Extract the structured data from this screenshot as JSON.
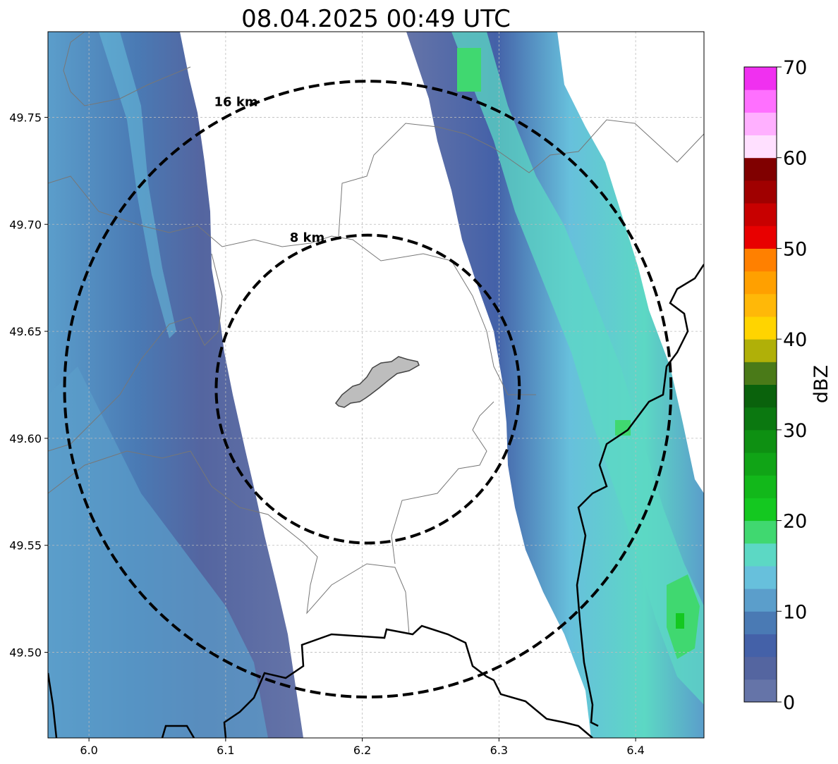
{
  "title": "08.04.2025 00:49 UTC",
  "map": {
    "lon_range": [
      5.97,
      6.45
    ],
    "lat_range": [
      49.46,
      49.79
    ],
    "x_ticks": [
      {
        "value": 6.0,
        "label": "6.0"
      },
      {
        "value": 6.1,
        "label": "6.1"
      },
      {
        "value": 6.2,
        "label": "6.2"
      },
      {
        "value": 6.3,
        "label": "6.3"
      },
      {
        "value": 6.4,
        "label": "6.4"
      }
    ],
    "y_ticks": [
      {
        "value": 49.5,
        "label": "49.50"
      },
      {
        "value": 49.55,
        "label": "49.55"
      },
      {
        "value": 49.6,
        "label": "49.60"
      },
      {
        "value": 49.65,
        "label": "49.65"
      },
      {
        "value": 49.7,
        "label": "49.70"
      },
      {
        "value": 49.75,
        "label": "49.75"
      }
    ],
    "grid": true,
    "center": {
      "lon": 6.204,
      "lat": 49.623
    },
    "range_rings": [
      {
        "radius_km": 8,
        "label": "8 km"
      },
      {
        "radius_km": 16,
        "label": "16 km"
      }
    ]
  },
  "colorbar": {
    "label": "dBZ",
    "min": 0,
    "max": 70,
    "ticks": [
      {
        "value": 0,
        "label": "0"
      },
      {
        "value": 10,
        "label": "10"
      },
      {
        "value": 20,
        "label": "20"
      },
      {
        "value": 30,
        "label": "30"
      },
      {
        "value": 40,
        "label": "40"
      },
      {
        "value": 50,
        "label": "50"
      },
      {
        "value": 60,
        "label": "60"
      },
      {
        "value": 70,
        "label": "70"
      }
    ],
    "colors": [
      "#6574a8",
      "#5465a0",
      "#4461a8",
      "#4a7ab4",
      "#5b9ecb",
      "#67c0dc",
      "#5cd8c4",
      "#40d870",
      "#14c820",
      "#12b81a",
      "#10a416",
      "#0e9012",
      "#0b7810",
      "#0a620c",
      "#4a7a18",
      "#b0b008",
      "#ffd400",
      "#ffb808",
      "#ffa000",
      "#ff8000",
      "#e80000",
      "#c80000",
      "#a00000",
      "#800000",
      "#ffe0ff",
      "#ffb0ff",
      "#ff70ff",
      "#f030f0"
    ]
  }
}
